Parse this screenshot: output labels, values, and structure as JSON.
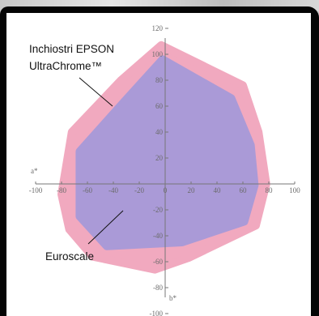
{
  "chart_data": {
    "type": "area",
    "title": "",
    "xlabel": "a*",
    "ylabel": "b*",
    "xlim": [
      -100,
      100
    ],
    "ylim": [
      -100,
      120
    ],
    "x_ticks": [
      -100,
      -80,
      -60,
      -40,
      -20,
      0,
      20,
      40,
      60,
      80,
      100
    ],
    "y_ticks": [
      120,
      100,
      80,
      60,
      40,
      20,
      0,
      -20,
      -40,
      -60,
      -80,
      -100
    ],
    "grid": false,
    "series": [
      {
        "name": "Inchiostri EPSON UltraChrome™",
        "color": "#f1a9bf",
        "points": [
          [
            -3,
            107
          ],
          [
            60,
            76
          ],
          [
            72,
            40
          ],
          [
            78,
            0
          ],
          [
            70,
            -32
          ],
          [
            18,
            -57
          ],
          [
            -8,
            -66
          ],
          [
            -56,
            -56
          ],
          [
            -74,
            -35
          ],
          [
            -80,
            -8
          ],
          [
            -72,
            40
          ],
          [
            -34,
            80
          ]
        ]
      },
      {
        "name": "Euroscale",
        "color": "#aa9ad7",
        "points": [
          [
            -2,
            96
          ],
          [
            51,
            66
          ],
          [
            66,
            30
          ],
          [
            69,
            -1
          ],
          [
            61,
            -29
          ],
          [
            13,
            -45
          ],
          [
            -45,
            -48
          ],
          [
            -66,
            -25
          ],
          [
            -66,
            25
          ],
          [
            -32,
            63
          ]
        ]
      }
    ],
    "annotations": [
      {
        "lines": [
          "Inchiostri EPSON",
          "UltraChrome™"
        ],
        "points_to": "Inchiostri EPSON UltraChrome™"
      },
      {
        "lines": [
          "Euroscale"
        ],
        "points_to": "Euroscale"
      }
    ]
  }
}
